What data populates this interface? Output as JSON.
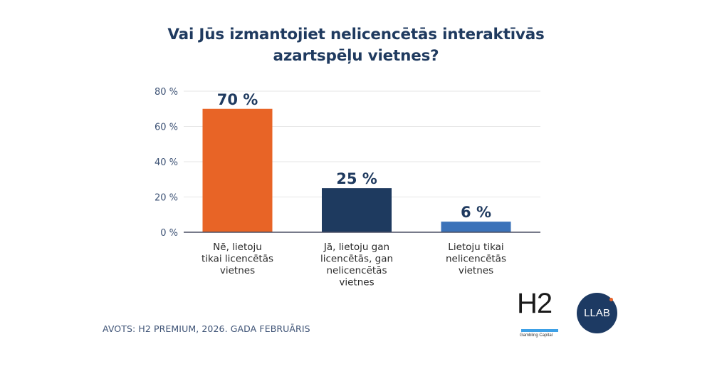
{
  "chart_data": {
    "type": "bar",
    "title": "Vai Jūs izmantojiet nelicencētās interaktīvās azartspēļu vietnes?",
    "title_lines": [
      "Vai Jūs izmantojiet nelicencētās interaktīvās",
      "azartspēļu vietnes?"
    ],
    "categories": [
      [
        "Nē, lietoju",
        "tikai licencētās",
        "vietnes"
      ],
      [
        "Jā, lietoju gan",
        "licencētās, gan",
        "nelicencētās",
        "vietnes"
      ],
      [
        "Lietoju tikai",
        "nelicencētās",
        "vietnes"
      ]
    ],
    "values": [
      70,
      25,
      6
    ],
    "data_labels": [
      "70 %",
      "25 %",
      "6 %"
    ],
    "colors": [
      "#e86426",
      "#1e3a5f",
      "#3b72b9"
    ],
    "ylim": [
      0,
      80
    ],
    "yticks": [
      0,
      20,
      40,
      60,
      80
    ],
    "ytick_labels": [
      "0 %",
      "20 %",
      "40 %",
      "60 %",
      "80 %"
    ],
    "xlabel": "",
    "ylabel": "",
    "grid": true,
    "legend": "none"
  },
  "footer": {
    "source": "AVOTS: H2 PREMIUM, 2026. GADA FEBRUĀRIS"
  },
  "logos": {
    "h2": {
      "name": "H2",
      "subtitle": "Gambling Capital"
    },
    "llab": {
      "name": "LLAB"
    }
  },
  "colors": {
    "title": "#1f3a5f",
    "axis_text": "#3d5275",
    "grid": "#e6e6e6",
    "baseline": "#4a4f63"
  }
}
